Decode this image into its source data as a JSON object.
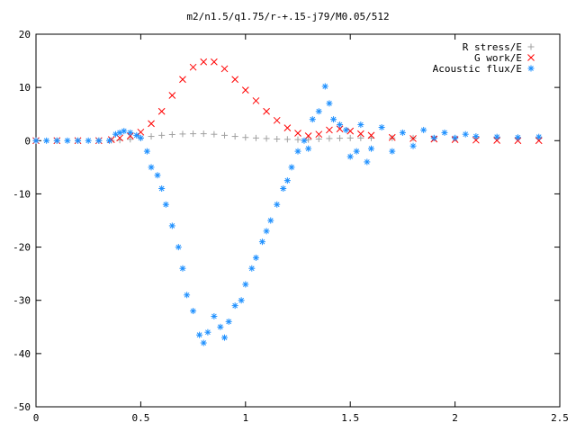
{
  "chart_data": {
    "type": "scatter",
    "title": "m2/n1.5/q1.75/r-+.15-j79/M0.05/512",
    "xlabel": "",
    "ylabel": "",
    "xlim": [
      0,
      2.5
    ],
    "ylim": [
      -50,
      20
    ],
    "x_ticks": [
      "0",
      "0.5",
      "1",
      "1.5",
      "2",
      "2.5"
    ],
    "y_ticks": [
      "20",
      "10",
      "0",
      "-10",
      "-20",
      "-30",
      "-40",
      "-50"
    ],
    "grid": false,
    "legend_position": "top-right",
    "series": [
      {
        "name": "R stress/E",
        "marker": "plus",
        "color": "#a0a0a0",
        "x": [
          0.0,
          0.1,
          0.2,
          0.3,
          0.36,
          0.4,
          0.45,
          0.5,
          0.55,
          0.6,
          0.65,
          0.7,
          0.75,
          0.8,
          0.85,
          0.9,
          0.95,
          1.0,
          1.05,
          1.1,
          1.15,
          1.2,
          1.25,
          1.3,
          1.35,
          1.4,
          1.45,
          1.5,
          1.55,
          1.6,
          1.7,
          1.8,
          1.9,
          2.0,
          2.1,
          2.2,
          2.3,
          2.4
        ],
        "y": [
          0,
          0,
          0,
          0,
          0.05,
          0.1,
          0.25,
          0.5,
          0.8,
          1.0,
          1.15,
          1.25,
          1.3,
          1.3,
          1.2,
          1.0,
          0.8,
          0.6,
          0.5,
          0.4,
          0.3,
          0.25,
          0.2,
          0.2,
          0.3,
          0.4,
          0.45,
          0.5,
          0.5,
          0.5,
          0.5,
          0.5,
          0.5,
          0.5,
          0.5,
          0.5,
          0.5,
          0.5
        ]
      },
      {
        "name": "G work/E",
        "marker": "cross",
        "color": "#ff0000",
        "x": [
          0.0,
          0.1,
          0.2,
          0.3,
          0.36,
          0.4,
          0.45,
          0.5,
          0.55,
          0.6,
          0.65,
          0.7,
          0.75,
          0.8,
          0.85,
          0.9,
          0.95,
          1.0,
          1.05,
          1.1,
          1.15,
          1.2,
          1.25,
          1.3,
          1.35,
          1.4,
          1.45,
          1.5,
          1.55,
          1.6,
          1.7,
          1.8,
          1.9,
          2.0,
          2.1,
          2.2,
          2.3,
          2.4
        ],
        "y": [
          0,
          0,
          0,
          0,
          0.2,
          0.5,
          0.9,
          1.6,
          3.2,
          5.5,
          8.5,
          11.5,
          13.8,
          14.8,
          14.8,
          13.5,
          11.5,
          9.5,
          7.5,
          5.5,
          3.8,
          2.4,
          1.4,
          0.9,
          1.2,
          2.0,
          2.2,
          1.8,
          1.3,
          1.0,
          0.6,
          0.4,
          0.3,
          0.2,
          0.1,
          0.05,
          0.0,
          0.0
        ]
      },
      {
        "name": "Acoustic flux/E",
        "marker": "star",
        "color": "#1e90ff",
        "x": [
          0.0,
          0.05,
          0.1,
          0.15,
          0.2,
          0.25,
          0.3,
          0.35,
          0.38,
          0.4,
          0.42,
          0.45,
          0.48,
          0.5,
          0.53,
          0.55,
          0.58,
          0.6,
          0.62,
          0.65,
          0.68,
          0.7,
          0.72,
          0.75,
          0.78,
          0.8,
          0.82,
          0.85,
          0.88,
          0.9,
          0.92,
          0.95,
          0.98,
          1.0,
          1.03,
          1.05,
          1.08,
          1.1,
          1.12,
          1.15,
          1.18,
          1.2,
          1.22,
          1.25,
          1.28,
          1.3,
          1.32,
          1.35,
          1.38,
          1.4,
          1.42,
          1.45,
          1.48,
          1.5,
          1.53,
          1.55,
          1.58,
          1.6,
          1.65,
          1.7,
          1.75,
          1.8,
          1.85,
          1.9,
          1.95,
          2.0,
          2.05,
          2.1,
          2.2,
          2.3,
          2.4
        ],
        "y": [
          0,
          0,
          0,
          0,
          0,
          0,
          0,
          0,
          1.2,
          1.5,
          1.8,
          1.5,
          1.0,
          0.5,
          -2.0,
          -5.0,
          -6.5,
          -9.0,
          -12.0,
          -16.0,
          -20.0,
          -24.0,
          -29.0,
          -32.0,
          -36.5,
          -38.0,
          -36.0,
          -33.0,
          -35.0,
          -37.0,
          -34.0,
          -31.0,
          -30.0,
          -27.0,
          -24.0,
          -22.0,
          -19.0,
          -17.0,
          -15.0,
          -12.0,
          -9.0,
          -7.5,
          -5.0,
          -2.0,
          0.0,
          -1.5,
          4.0,
          5.5,
          10.2,
          7.0,
          4.0,
          3.0,
          2.0,
          -3.0,
          -2.0,
          3.0,
          -4.0,
          -1.5,
          2.5,
          -2.0,
          1.5,
          -1.0,
          2.0,
          0.5,
          1.5,
          0.5,
          1.2,
          0.8,
          0.7,
          0.6,
          0.7
        ]
      }
    ]
  }
}
